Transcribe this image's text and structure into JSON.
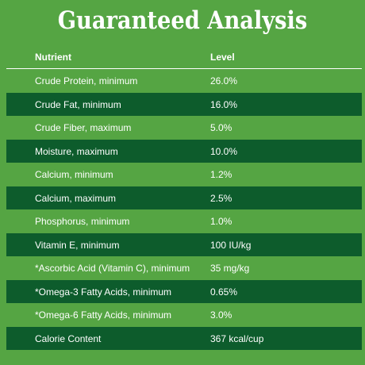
{
  "title": "Guaranteed Analysis",
  "header": {
    "nutrient": "Nutrient",
    "level": "Level"
  },
  "rows": [
    {
      "nutrient": "Crude Protein, minimum",
      "level": "26.0%"
    },
    {
      "nutrient": "Crude Fat, minimum",
      "level": "16.0%"
    },
    {
      "nutrient": "Crude Fiber, maximum",
      "level": "5.0%"
    },
    {
      "nutrient": "Moisture, maximum",
      "level": "10.0%"
    },
    {
      "nutrient": "Calcium, minimum",
      "level": "1.2%"
    },
    {
      "nutrient": "Calcium, maximum",
      "level": "2.5%"
    },
    {
      "nutrient": "Phosphorus, minimum",
      "level": "1.0%"
    },
    {
      "nutrient": "Vitamin E, minimum",
      "level": "100 IU/kg"
    },
    {
      "nutrient": "*Ascorbic Acid (Vitamin C), minimum",
      "level": "35 mg/kg"
    },
    {
      "nutrient": "*Omega-3 Fatty Acids, minimum",
      "level": "0.65%"
    },
    {
      "nutrient": "*Omega-6 Fatty Acids, minimum",
      "level": "3.0%"
    },
    {
      "nutrient": "Calorie Content",
      "level": "367 kcal/cup"
    }
  ],
  "colors": {
    "background": "#55a543",
    "row_dark": "#0d5c2c",
    "text": "#ffffff"
  }
}
